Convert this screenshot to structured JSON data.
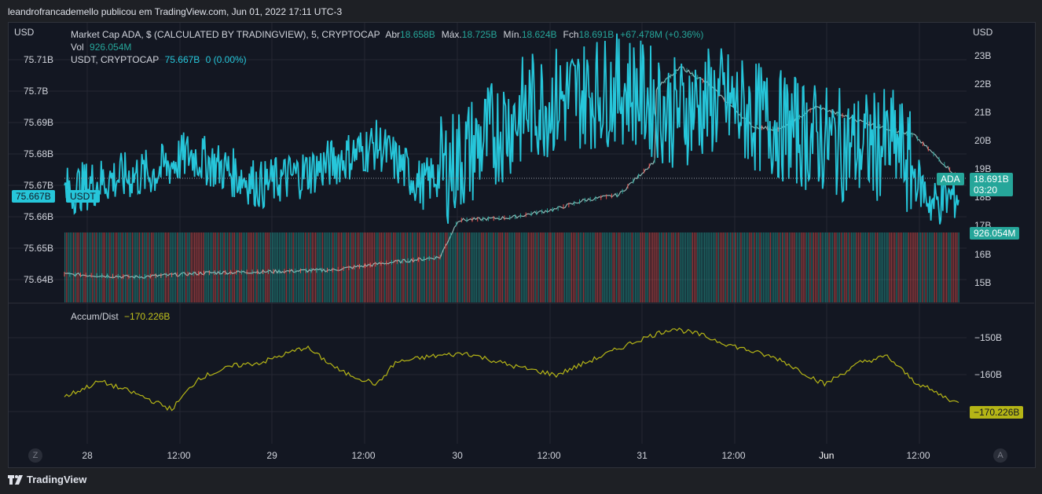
{
  "header": {
    "attribution": "leandrofrancademello publicou em TradingView.com, Jun 01, 2022 17:11 UTC-3"
  },
  "axis_units": {
    "left": "USD",
    "right": "USD"
  },
  "legend": {
    "main_title": "Market Cap ADA, $ (CALCULATED BY TRADINGVIEW), 5, CRYPTOCAP",
    "ohlc": [
      {
        "label": "Abr",
        "value": "18.658B"
      },
      {
        "label": "Máx.",
        "value": "18.725B"
      },
      {
        "label": "Mín.",
        "value": "18.624B"
      },
      {
        "label": "Fch",
        "value": "18.691B"
      },
      {
        "label": "",
        "value": "+67.478M (+0.36%)"
      }
    ],
    "vol_label": "Vol",
    "vol_value": "926.054M",
    "usdt_label": "USDT, CRYPTOCAP",
    "usdt_value": "75.667B",
    "usdt_change": "0 (0.00%)",
    "ad_label": "Accum/Dist",
    "ad_value": "−170.226B"
  },
  "tags": {
    "usdt_price": "75.667B",
    "usdt_name": "USDT",
    "ada_name": "ADA",
    "ada_price": "18.691B",
    "ada_countdown": "03:20",
    "volume": "926.054M",
    "ad": "−170.226B"
  },
  "colors": {
    "usdt": "#26c6da",
    "ada_up": "#26a69a",
    "ada_down": "#ef5350",
    "ad": "#b5b516",
    "vol_green": "#26a69a",
    "vol_red": "#ef5350"
  },
  "footer": {
    "brand": "TradingView"
  },
  "corner_buttons": {
    "left": "Z",
    "right": "A"
  },
  "chart_data": [
    {
      "type": "line",
      "name": "ADA market cap (candles) + USDT market cap",
      "x_ticks": [
        "28",
        "12:00",
        "29",
        "12:00",
        "30",
        "12:00",
        "31",
        "12:00",
        "Jun",
        "12:00"
      ],
      "right_axis_ticks": [
        "23B",
        "22B",
        "21B",
        "20B",
        "19B",
        "18B",
        "17B",
        "16B",
        "15B"
      ],
      "left_axis_ticks": [
        "75.71B",
        "75.7B",
        "75.69B",
        "75.68B",
        "75.67B",
        "75.66B",
        "75.65B",
        "75.64B"
      ],
      "right_ylim": [
        14.7,
        23.3
      ],
      "left_ylim": [
        75.636,
        75.714
      ],
      "series": [
        {
          "name": "ADA",
          "axis": "right",
          "x": [
            0,
            0.08,
            0.16,
            0.24,
            0.3,
            0.36,
            0.42,
            0.44,
            0.5,
            0.55,
            0.58,
            0.6,
            0.62,
            0.66,
            0.66,
            0.69,
            0.72,
            0.77,
            0.8,
            0.84,
            0.9,
            0.95,
            1.0
          ],
          "values": [
            15.3,
            15.2,
            15.35,
            15.4,
            15.45,
            15.7,
            15.9,
            17.2,
            17.3,
            17.6,
            17.9,
            18.0,
            18.1,
            19.3,
            21.8,
            22.6,
            22.0,
            20.5,
            20.4,
            21.2,
            20.6,
            20.2,
            18.69
          ]
        },
        {
          "name": "USDT",
          "axis": "left",
          "x": [
            0,
            0.05,
            0.1,
            0.14,
            0.22,
            0.28,
            0.35,
            0.4,
            0.45,
            0.52,
            0.58,
            0.63,
            0.68,
            0.73,
            0.78,
            0.83,
            0.88,
            0.93,
            0.97,
            1.0
          ],
          "values": [
            75.668,
            75.672,
            75.674,
            75.68,
            75.67,
            75.675,
            75.683,
            75.67,
            75.68,
            75.695,
            75.699,
            75.701,
            75.693,
            75.697,
            75.691,
            75.686,
            75.682,
            75.683,
            75.664,
            75.667
          ]
        }
      ]
    },
    {
      "type": "area",
      "name": "Volume",
      "note_value_last": "926.054M",
      "color_pattern": "mixed green/red bars"
    },
    {
      "type": "line",
      "name": "Accum/Dist",
      "right_axis_ticks": [
        "−150B",
        "−160B"
      ],
      "ylim": [
        -178,
        -144
      ],
      "x": [
        0,
        0.04,
        0.08,
        0.12,
        0.15,
        0.19,
        0.22,
        0.27,
        0.31,
        0.35,
        0.37,
        0.41,
        0.45,
        0.5,
        0.55,
        0.6,
        0.64,
        0.68,
        0.71,
        0.74,
        0.8,
        0.85,
        0.89,
        0.92,
        0.95,
        0.97,
        1.0
      ],
      "values": [
        -168,
        -163,
        -167,
        -172,
        -162,
        -158,
        -157,
        -152,
        -160,
        -164,
        -157,
        -155,
        -154,
        -158,
        -161,
        -155,
        -150,
        -146,
        -148,
        -151,
        -156,
        -164,
        -157,
        -155,
        -163,
        -166,
        -170.2
      ]
    }
  ]
}
